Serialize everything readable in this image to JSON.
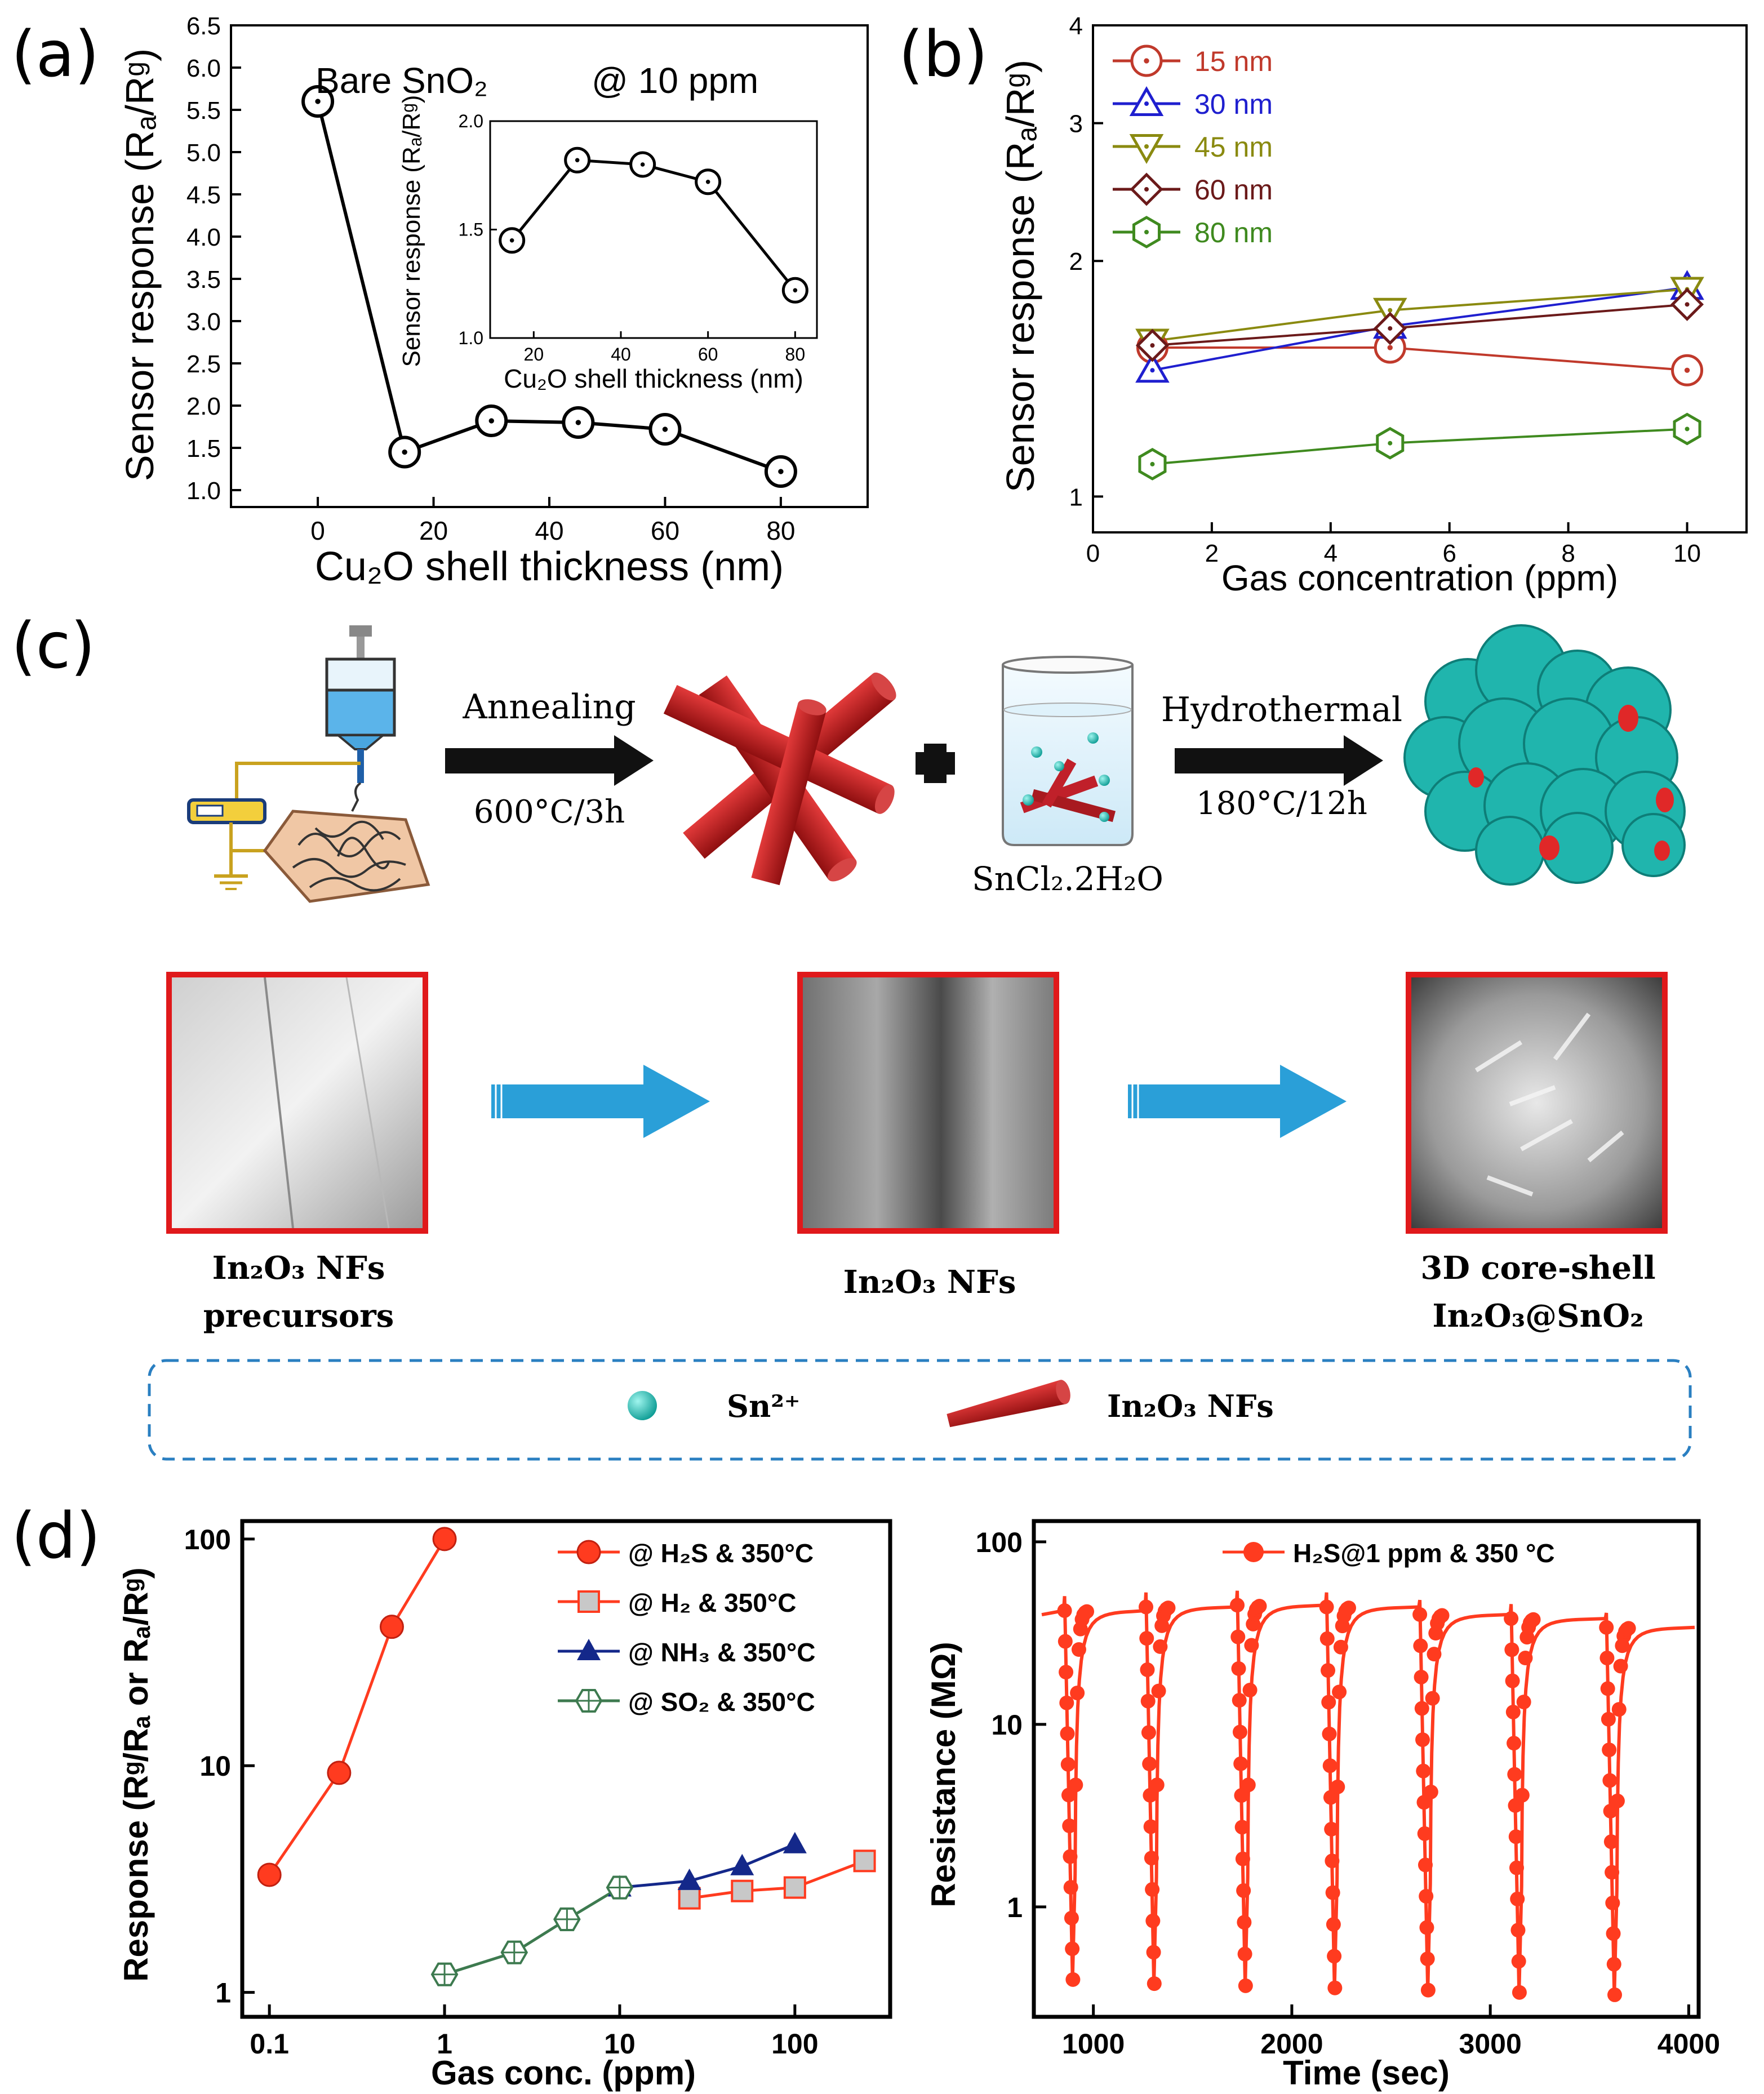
{
  "panel_labels": {
    "a": "(a)",
    "b": "(b)",
    "c": "(c)",
    "d": "(d)"
  },
  "colors": {
    "red": "#c0392b",
    "blue": "#1f1fcf",
    "olive": "#8a8a10",
    "maroon": "#6b1a1a",
    "green": "#3f8a1f",
    "d_red": "#ff3b1f",
    "d_blue": "#14288a",
    "d_green": "#3d7a4f",
    "teal": "#1fb9b0",
    "arrow": "#2a9fd8",
    "frame": "#e0191b"
  },
  "chart_data": [
    {
      "id": "a_main",
      "type": "scatter",
      "title": "",
      "annotations": [
        "Bare SnO₂",
        "@ 10 ppm"
      ],
      "xlabel": "Cu₂O shell thickness (nm)",
      "ylabel": "Sensor response (Rₐ/Rᵍ)",
      "xlim": [
        -15,
        95
      ],
      "ylim": [
        0.8,
        6.5
      ],
      "xticks": [
        "0",
        "20",
        "40",
        "60",
        "80"
      ],
      "yticks": [
        "1.0",
        "1.5",
        "2.0",
        "2.5",
        "3.0",
        "3.5",
        "4.0",
        "4.5",
        "5.0",
        "5.5",
        "6.0",
        "6.5"
      ],
      "x": [
        0,
        15,
        30,
        45,
        60,
        80
      ],
      "y": [
        5.6,
        1.45,
        1.82,
        1.8,
        1.72,
        1.22
      ]
    },
    {
      "id": "a_inset",
      "type": "scatter",
      "xlabel": "Cu₂O shell thickness (nm)",
      "ylabel": "Sensor response (Rₐ/Rᵍ)",
      "xlim": [
        10,
        85
      ],
      "ylim": [
        1.0,
        2.0
      ],
      "xticks": [
        "20",
        "40",
        "60",
        "80"
      ],
      "yticks": [
        "1.0",
        "1.5",
        "2.0"
      ],
      "x": [
        15,
        30,
        45,
        60,
        80
      ],
      "y": [
        1.45,
        1.82,
        1.8,
        1.72,
        1.22
      ]
    },
    {
      "id": "b",
      "type": "line",
      "xlabel": "Gas concentration (ppm)",
      "ylabel": "Sensor response (Rₐ/Rᵍ)",
      "xlim": [
        0,
        11
      ],
      "ylim": [
        0.9,
        4
      ],
      "yscale": "log",
      "xticks": [
        "0",
        "2",
        "4",
        "6",
        "8",
        "10"
      ],
      "yticks": [
        "1",
        "2",
        "3",
        "4"
      ],
      "x": [
        1,
        5,
        10
      ],
      "series": [
        {
          "name": "15 nm",
          "values": [
            1.55,
            1.55,
            1.45
          ]
        },
        {
          "name": "30 nm",
          "values": [
            1.45,
            1.65,
            1.85
          ]
        },
        {
          "name": "45 nm",
          "values": [
            1.58,
            1.73,
            1.84
          ]
        },
        {
          "name": "60 nm",
          "values": [
            1.56,
            1.64,
            1.76
          ]
        },
        {
          "name": "80 nm",
          "values": [
            1.1,
            1.17,
            1.22
          ]
        }
      ]
    },
    {
      "id": "d_left",
      "type": "line",
      "xlabel": "Gas conc. (ppm)",
      "ylabel": "Response (Rᵍ/Rₐ or Rₐ/Rᵍ)",
      "xscale": "log",
      "yscale": "log",
      "xlim": [
        0.07,
        350
      ],
      "ylim": [
        0.78,
        120
      ],
      "xticks": [
        "0.1",
        "1",
        "10",
        "100"
      ],
      "yticks": [
        "1",
        "10",
        "100"
      ],
      "series": [
        {
          "name": "@ H₂S & 350°C",
          "x": [
            0.1,
            0.25,
            0.5,
            1
          ],
          "values": [
            3.3,
            9.3,
            41,
            100
          ]
        },
        {
          "name": "@ H₂ & 350°C",
          "x": [
            25,
            50,
            100,
            250
          ],
          "values": [
            2.6,
            2.8,
            2.9,
            3.8
          ]
        },
        {
          "name": "@ NH₃ & 350°C",
          "x": [
            10,
            25,
            50,
            100
          ],
          "values": [
            2.9,
            3.1,
            3.6,
            4.5
          ]
        },
        {
          "name": "@ SO₂ & 350°C",
          "x": [
            1,
            2.5,
            5,
            10
          ],
          "values": [
            1.2,
            1.5,
            2.1,
            2.9
          ]
        }
      ]
    },
    {
      "id": "d_right",
      "type": "line",
      "xlabel": "Time (sec)",
      "ylabel": "Resistance (MΩ)",
      "yscale": "log",
      "xlim": [
        700,
        4050
      ],
      "ylim": [
        0.25,
        130
      ],
      "xticks": [
        "1000",
        "2000",
        "3000",
        "4000"
      ],
      "yticks": [
        "1",
        "10",
        "100"
      ],
      "series": [
        {
          "name": "H₂S@1 ppm & 350 °C",
          "baseline": [
            42,
            44,
            45,
            44,
            40,
            38,
            34
          ],
          "minimum": [
            0.4,
            0.38,
            0.37,
            0.36,
            0.35,
            0.34,
            0.33
          ]
        }
      ],
      "gas_in_times": [
        850,
        1260,
        1720,
        2170,
        2640,
        3100,
        3580
      ]
    }
  ],
  "panel_c": {
    "step1": {
      "arrow_label": "Annealing",
      "condition": "600°C/3h"
    },
    "step2": {
      "arrow_label": "Hydrothermal",
      "condition": "180°C/12h",
      "reagent": "SnCl₂.2H₂O"
    },
    "images": [
      {
        "caption_line1": "In₂O₃ NFs",
        "caption_line2": "precursors"
      },
      {
        "caption_line1": "In₂O₃ NFs",
        "caption_line2": ""
      },
      {
        "caption_line1": "3D core-shell",
        "caption_line2": "In₂O₃@SnO₂"
      }
    ],
    "legend": {
      "sn_label": "Sn²⁺",
      "nf_label": "In₂O₃ NFs"
    }
  }
}
